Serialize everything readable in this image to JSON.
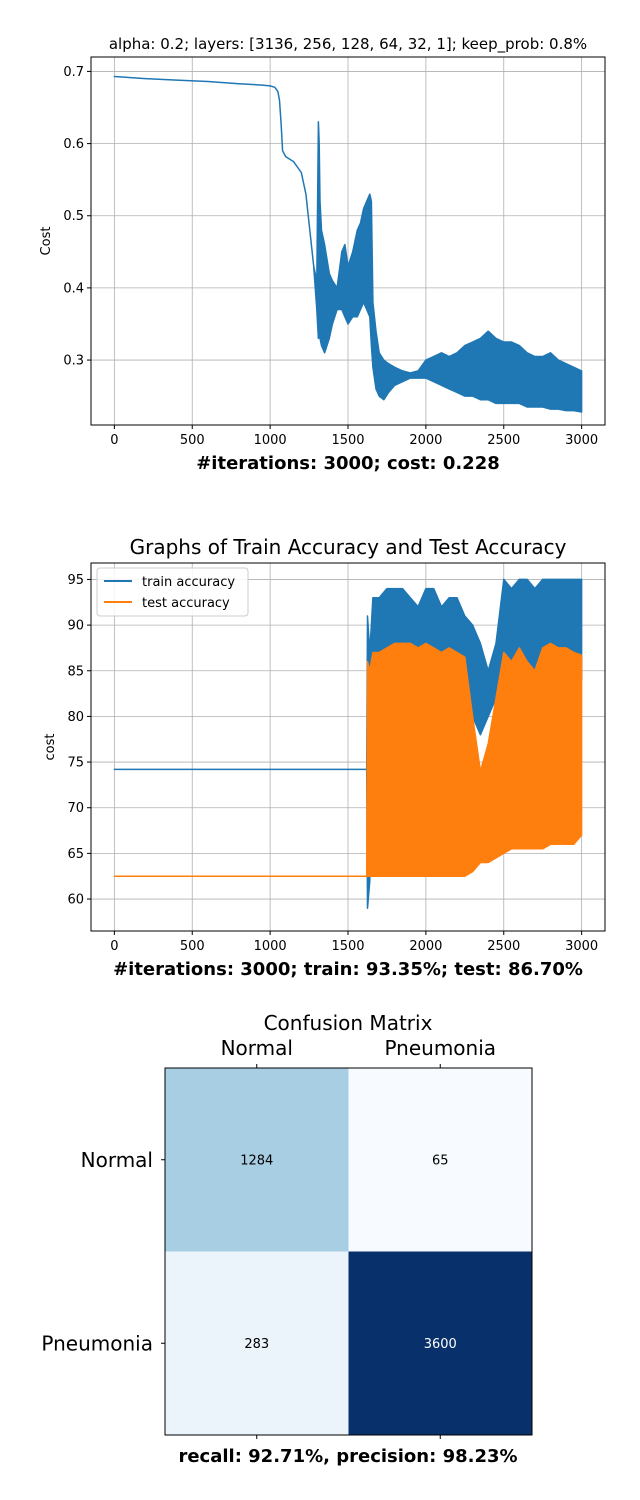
{
  "chart_data": [
    {
      "type": "line",
      "title": "alpha: 0.2; layers: [3136, 256, 128, 64, 32, 1]; keep_prob: 0.8%",
      "xlabel": "#iterations: 3000; cost: 0.228",
      "ylabel": "Cost",
      "xlim": [
        -150,
        3150
      ],
      "ylim": [
        0.21,
        0.72
      ],
      "xticks": [
        0,
        500,
        1000,
        1500,
        2000,
        2500,
        3000
      ],
      "yticks": [
        0.3,
        0.4,
        0.5,
        0.6,
        0.7
      ],
      "grid": true,
      "series": [
        {
          "color": "#1f77b4",
          "x": [
            0,
            200,
            400,
            600,
            800,
            950,
            1000,
            1030,
            1050,
            1060,
            1070,
            1080,
            1100,
            1150,
            1200,
            1230,
            1260,
            1280,
            1300,
            1310,
            1315,
            1320,
            1330,
            1350,
            1380,
            1400,
            1430,
            1460,
            1480,
            1500,
            1530,
            1560,
            1580,
            1600,
            1620,
            1640,
            1650,
            1660,
            1680,
            1700,
            1730,
            1760,
            1800,
            1850,
            1900,
            1950,
            2000,
            2050,
            2100,
            2150,
            2200,
            2250,
            2300,
            2350,
            2400,
            2450,
            2500,
            2550,
            2600,
            2650,
            2700,
            2750,
            2800,
            2850,
            2900,
            2950,
            3000
          ],
          "upper": [
            0.693,
            0.69,
            0.688,
            0.686,
            0.683,
            0.681,
            0.68,
            0.678,
            0.672,
            0.66,
            0.63,
            0.59,
            0.582,
            0.575,
            0.56,
            0.53,
            0.47,
            0.43,
            0.41,
            0.63,
            0.6,
            0.52,
            0.48,
            0.46,
            0.42,
            0.41,
            0.4,
            0.45,
            0.46,
            0.43,
            0.45,
            0.48,
            0.49,
            0.51,
            0.52,
            0.53,
            0.52,
            0.38,
            0.34,
            0.31,
            0.3,
            0.295,
            0.29,
            0.285,
            0.282,
            0.285,
            0.3,
            0.305,
            0.31,
            0.305,
            0.31,
            0.32,
            0.325,
            0.33,
            0.34,
            0.33,
            0.325,
            0.325,
            0.32,
            0.31,
            0.305,
            0.305,
            0.31,
            0.3,
            0.295,
            0.29,
            0.285
          ],
          "lower": [
            0.693,
            0.69,
            0.688,
            0.686,
            0.683,
            0.681,
            0.68,
            0.678,
            0.672,
            0.66,
            0.63,
            0.59,
            0.582,
            0.575,
            0.56,
            0.53,
            0.47,
            0.43,
            0.37,
            0.33,
            0.35,
            0.33,
            0.32,
            0.31,
            0.33,
            0.35,
            0.37,
            0.37,
            0.36,
            0.35,
            0.36,
            0.36,
            0.37,
            0.38,
            0.37,
            0.36,
            0.32,
            0.29,
            0.26,
            0.25,
            0.245,
            0.255,
            0.265,
            0.27,
            0.275,
            0.275,
            0.275,
            0.27,
            0.265,
            0.26,
            0.255,
            0.25,
            0.25,
            0.245,
            0.245,
            0.24,
            0.24,
            0.24,
            0.24,
            0.235,
            0.235,
            0.235,
            0.232,
            0.232,
            0.23,
            0.23,
            0.228
          ]
        }
      ]
    },
    {
      "type": "line",
      "title": "Graphs of Train Accuracy and Test Accuracy",
      "xlabel": "#iterations: 3000; train: 93.35%; test: 86.70%",
      "ylabel": "cost",
      "xlim": [
        -150,
        3150
      ],
      "ylim": [
        56.5,
        96.8
      ],
      "xticks": [
        0,
        500,
        1000,
        1500,
        2000,
        2500,
        3000
      ],
      "yticks": [
        60,
        65,
        70,
        75,
        80,
        85,
        90,
        95
      ],
      "grid": true,
      "legend": "top-left",
      "series": [
        {
          "name": "train accuracy",
          "color": "#1f77b4",
          "x": [
            0,
            1620,
            1625,
            1640,
            1660,
            1700,
            1750,
            1800,
            1850,
            1900,
            1950,
            2000,
            2050,
            2100,
            2150,
            2200,
            2250,
            2300,
            2350,
            2400,
            2450,
            2500,
            2550,
            2600,
            2650,
            2700,
            2750,
            2800,
            2850,
            2900,
            2950,
            3000
          ],
          "upper": [
            74.2,
            74.2,
            91,
            87,
            93,
            93,
            94,
            94,
            94,
            93,
            92,
            94,
            94,
            92,
            93,
            93,
            91,
            90,
            88,
            85,
            88,
            95,
            94,
            95,
            95,
            94,
            95,
            95,
            95,
            95,
            95,
            95
          ],
          "lower": [
            74.2,
            74.2,
            59,
            62,
            84,
            85,
            87,
            86,
            85,
            84,
            83,
            83,
            84,
            85,
            83,
            84,
            83,
            80,
            78,
            80,
            82,
            84,
            86,
            84,
            78,
            76,
            78,
            80,
            80,
            82,
            85,
            84
          ]
        },
        {
          "name": "test accuracy",
          "color": "#ff7f0e",
          "x": [
            0,
            1620,
            1625,
            1640,
            1660,
            1700,
            1750,
            1800,
            1850,
            1900,
            1950,
            2000,
            2050,
            2100,
            2150,
            2200,
            2250,
            2300,
            2350,
            2400,
            2450,
            2500,
            2550,
            2600,
            2650,
            2700,
            2750,
            2800,
            2850,
            2900,
            2950,
            3000
          ],
          "upper": [
            62.5,
            62.5,
            86,
            85,
            87,
            87,
            87.5,
            88,
            88,
            88,
            87.5,
            88,
            87.5,
            87,
            87.5,
            87,
            86.5,
            80,
            74,
            77,
            82,
            87,
            86,
            87.5,
            86,
            85,
            87.5,
            88,
            87.5,
            87.5,
            87,
            86.7
          ],
          "lower": [
            62.5,
            62.5,
            62.5,
            62.5,
            62.5,
            62.5,
            62.5,
            62.5,
            62.5,
            62.5,
            62.5,
            62.5,
            62.5,
            62.5,
            62.5,
            62.5,
            62.5,
            63,
            64,
            64,
            64.5,
            65,
            65.5,
            65.5,
            65.5,
            65.5,
            65.5,
            66,
            66,
            66,
            66,
            67
          ]
        }
      ]
    },
    {
      "type": "heatmap",
      "title": "Confusion Matrix",
      "xlabel": "recall: 92.71%, precision: 98.23%",
      "columns": [
        "Normal",
        "Pneumonia"
      ],
      "rows": [
        "Normal",
        "Pneumonia"
      ],
      "values": [
        [
          1284,
          65
        ],
        [
          283,
          3600
        ]
      ],
      "colormap": "Blues"
    }
  ]
}
